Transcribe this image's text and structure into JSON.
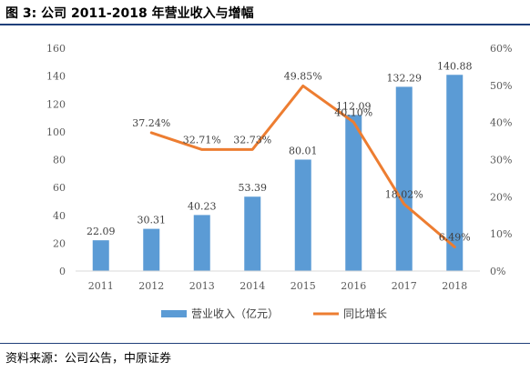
{
  "title": "图 3:  公司 2011-2018 年营业收入与增幅",
  "source": "资料来源：公司公告，中原证券",
  "colors": {
    "bar": "#5b9bd5",
    "line": "#ed7d31"
  },
  "chart_data": {
    "type": "bar",
    "categories": [
      "2011",
      "2012",
      "2013",
      "2014",
      "2015",
      "2016",
      "2017",
      "2018"
    ],
    "series": [
      {
        "name": "营业收入（亿元）",
        "type": "bar",
        "axis": "left",
        "values": [
          22.09,
          30.31,
          40.23,
          53.39,
          80.01,
          112.09,
          132.29,
          140.88
        ],
        "labels": [
          "22.09",
          "30.31",
          "40.23",
          "53.39",
          "80.01",
          "112.09",
          "132.29",
          "140.88"
        ]
      },
      {
        "name": "同比增长",
        "type": "line",
        "axis": "right",
        "values": [
          null,
          37.24,
          32.71,
          32.73,
          49.85,
          40.1,
          18.02,
          6.49
        ],
        "labels": [
          "",
          "37.24%",
          "32.71%",
          "32.73%",
          "49.85%",
          "40.10%",
          "18.02%",
          "6.49%"
        ]
      }
    ],
    "y_left": {
      "min": 0,
      "max": 160,
      "ticks": [
        "0",
        "20",
        "40",
        "60",
        "80",
        "100",
        "120",
        "140",
        "160"
      ]
    },
    "y_right": {
      "min": 0,
      "max": 60,
      "ticks": [
        "0%",
        "10%",
        "20%",
        "30%",
        "40%",
        "50%",
        "60%"
      ]
    },
    "grid": false,
    "legend": "bottom"
  }
}
